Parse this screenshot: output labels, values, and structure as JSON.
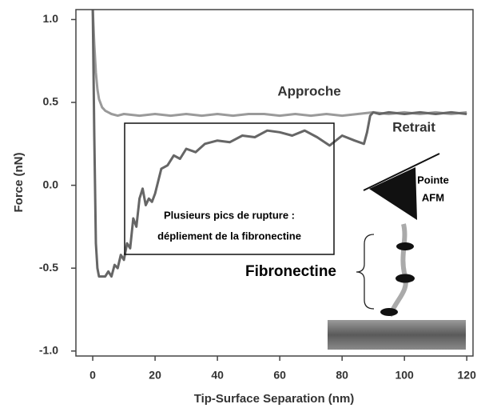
{
  "chart_data": {
    "type": "line",
    "x_label": "Tip-Surface Separation (nm)",
    "y_label": "Force (nN)",
    "xlim": [
      -5.4,
      122
    ],
    "ylim": [
      -1.03,
      1.06
    ],
    "xticks": [
      0,
      20,
      40,
      60,
      80,
      100,
      120
    ],
    "yticks": [
      {
        "value": -1,
        "label": "-1.0"
      },
      -0.5,
      {
        "value": 0,
        "label": "0.0"
      },
      0.5,
      {
        "value": 1,
        "label": "1.0"
      }
    ],
    "series": [
      {
        "name": "Approche",
        "color": "#9a9a9a",
        "x": [
          0,
          0.5,
          1,
          1.5,
          2,
          3,
          4,
          5,
          6,
          8,
          10,
          15,
          20,
          25,
          30,
          35,
          40,
          45,
          50,
          55,
          60,
          65,
          70,
          75,
          80,
          85,
          90,
          95,
          100,
          105,
          110,
          115,
          120
        ],
        "values": [
          1.06,
          0.85,
          0.68,
          0.58,
          0.52,
          0.47,
          0.45,
          0.44,
          0.43,
          0.42,
          0.43,
          0.42,
          0.43,
          0.42,
          0.43,
          0.42,
          0.43,
          0.42,
          0.43,
          0.43,
          0.42,
          0.43,
          0.42,
          0.43,
          0.42,
          0.43,
          0.44,
          0.43,
          0.44,
          0.43,
          0.44,
          0.43,
          0.44
        ]
      },
      {
        "name": "Retrait",
        "color": "#666666",
        "x": [
          0,
          0.5,
          1,
          1.5,
          2,
          3,
          4,
          5,
          6,
          7,
          8,
          9,
          10,
          11,
          12,
          13,
          14,
          15,
          16,
          17,
          18,
          19,
          20,
          22,
          24,
          26,
          28,
          30,
          33,
          36,
          40,
          44,
          48,
          52,
          56,
          60,
          64,
          68,
          72,
          76,
          80,
          84,
          87,
          88,
          89,
          90,
          92,
          95,
          100,
          105,
          110,
          115,
          120
        ],
        "values": [
          1.06,
          0.3,
          -0.35,
          -0.5,
          -0.55,
          -0.55,
          -0.55,
          -0.52,
          -0.55,
          -0.48,
          -0.5,
          -0.42,
          -0.45,
          -0.35,
          -0.38,
          -0.2,
          -0.25,
          -0.08,
          -0.02,
          -0.12,
          -0.08,
          -0.1,
          -0.05,
          0.1,
          0.12,
          0.18,
          0.16,
          0.22,
          0.2,
          0.25,
          0.27,
          0.26,
          0.3,
          0.29,
          0.33,
          0.32,
          0.3,
          0.33,
          0.29,
          0.24,
          0.3,
          0.27,
          0.25,
          0.32,
          0.42,
          0.44,
          0.43,
          0.44,
          0.43,
          0.44,
          0.43,
          0.44,
          0.43
        ]
      }
    ],
    "annotations": {
      "box_line1": "Plusieurs pics de rupture :",
      "box_line2": "dépliement de la fibronectine",
      "tip_line1": "Pointe",
      "tip_line2": "AFM",
      "protein": "Fibronectine"
    }
  }
}
